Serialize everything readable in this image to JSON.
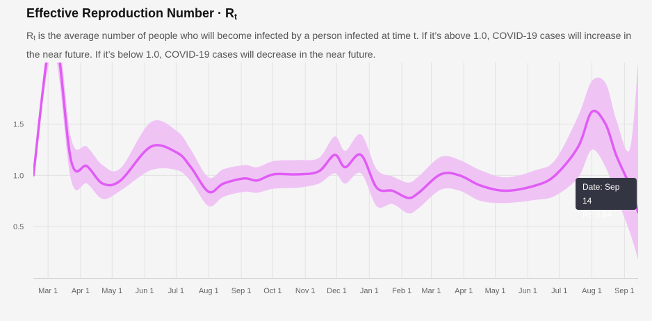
{
  "header": {
    "title": "Effective Reproduction Number · R",
    "title_sub": "t",
    "desc_r": "R",
    "desc_sub": "t",
    "desc_rest": " is the average number of people who will become infected by a person infected at time t. If it’s above 1.0, COVID-19 cases will increase in the near future. If it’s below 1.0, COVID-19 cases will decrease in the near future."
  },
  "tooltip": {
    "date_label": "Date: Sep 14",
    "value_label": "Rt: 0.64"
  },
  "colors": {
    "line": "#e05cf5",
    "band": "#efc4f5",
    "grid": "#e2e2e2",
    "axis": "#cccccc"
  },
  "chart_data": {
    "type": "line",
    "ylim": [
      0,
      2.1
    ],
    "y_ticks": [
      0.5,
      1.0,
      1.5
    ],
    "y_tick_labels": [
      "0.5",
      "1.0",
      "1.5"
    ],
    "x_tick_labels": [
      "Mar 1",
      "Apr 1",
      "May 1",
      "Jun 1",
      "Jul 1",
      "Aug 1",
      "Sep 1",
      "Oct 1",
      "Nov 1",
      "Dec 1",
      "Jan 1",
      "Feb 1",
      "Mar 1",
      "Apr 1",
      "May 1",
      "Jun 1",
      "Jul 1",
      "Aug 1",
      "Sep 1"
    ],
    "x_tick_days": [
      14,
      45,
      75,
      106,
      136,
      167,
      198,
      228,
      259,
      289,
      320,
      351,
      379,
      410,
      440,
      471,
      501,
      532,
      563
    ],
    "x_range_days": [
      0,
      576
    ],
    "grid": true,
    "series": [
      {
        "day": [
          0,
          19,
          36,
          51,
          66,
          83,
          112,
          137,
          150,
          167,
          181,
          201,
          213,
          229,
          252,
          272,
          287,
          297,
          312,
          327,
          342,
          357,
          367,
          388,
          406,
          426,
          450,
          478,
          497,
          519,
          532,
          545,
          555,
          568,
          576
        ],
        "value": [
          1.0,
          2.4,
          1.14,
          1.09,
          0.92,
          0.95,
          1.28,
          1.22,
          1.08,
          0.84,
          0.92,
          0.97,
          0.95,
          1.01,
          1.01,
          1.04,
          1.2,
          1.08,
          1.2,
          0.88,
          0.85,
          0.78,
          0.83,
          1.01,
          1.0,
          0.9,
          0.85,
          0.9,
          1.0,
          1.28,
          1.62,
          1.5,
          1.2,
          0.9,
          0.64
        ],
        "lower": [
          1.0,
          2.2,
          0.95,
          0.92,
          0.77,
          0.85,
          1.05,
          1.05,
          0.94,
          0.7,
          0.79,
          0.84,
          0.83,
          0.87,
          0.88,
          0.92,
          1.02,
          0.92,
          1.02,
          0.7,
          0.72,
          0.63,
          0.68,
          0.86,
          0.85,
          0.75,
          0.73,
          0.76,
          0.8,
          0.98,
          1.25,
          1.08,
          0.8,
          0.45,
          0.18
        ],
        "upper": [
          1.0,
          2.6,
          1.36,
          1.28,
          1.1,
          1.07,
          1.52,
          1.43,
          1.25,
          0.98,
          1.06,
          1.1,
          1.08,
          1.14,
          1.15,
          1.17,
          1.38,
          1.24,
          1.4,
          1.06,
          0.99,
          0.93,
          0.99,
          1.18,
          1.15,
          1.05,
          0.98,
          1.05,
          1.15,
          1.58,
          1.92,
          1.9,
          1.55,
          1.25,
          2.1
        ]
      }
    ]
  }
}
